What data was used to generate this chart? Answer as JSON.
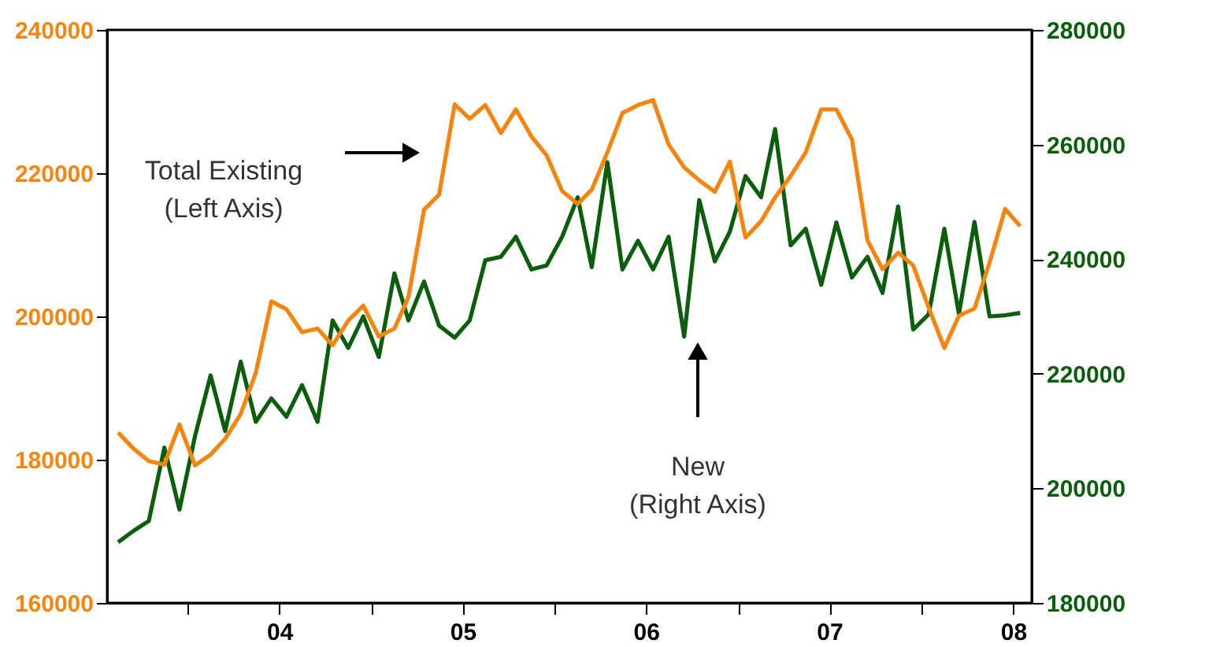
{
  "chart_data": {
    "type": "line",
    "x": [
      "2003-08-15",
      "2003-09-15",
      "2003-10-15",
      "2003-11-15",
      "2003-12-15",
      "2004-01-15",
      "2004-02-15",
      "2004-03-15",
      "2004-04-15",
      "2004-05-15",
      "2004-06-15",
      "2004-07-15",
      "2004-08-15",
      "2004-09-15",
      "2004-10-15",
      "2004-11-15",
      "2004-12-15",
      "2005-01-15",
      "2005-02-15",
      "2005-03-15",
      "2005-04-15",
      "2005-05-15",
      "2005-06-15",
      "2005-07-15",
      "2005-08-15",
      "2005-09-15",
      "2005-10-15",
      "2005-11-15",
      "2005-12-15",
      "2006-01-15",
      "2006-02-15",
      "2006-03-15",
      "2006-04-15",
      "2006-05-15",
      "2006-06-15",
      "2006-07-15",
      "2006-08-15",
      "2006-09-15",
      "2006-10-15",
      "2006-11-15",
      "2006-12-15",
      "2007-01-15",
      "2007-02-15",
      "2007-03-15",
      "2007-04-15",
      "2007-05-15",
      "2007-06-15",
      "2007-07-15",
      "2007-08-15",
      "2007-09-15",
      "2007-10-15",
      "2007-11-15",
      "2007-12-15",
      "2008-01-15",
      "2008-02-15",
      "2008-03-15",
      "2008-04-15",
      "2008-05-15",
      "2008-06-15",
      "2008-07-15"
    ],
    "series": [
      {
        "color": "#0b5e0b",
        "axis": "y2",
        "values": [
          190600,
          192600,
          194300,
          207100,
          196300,
          209100,
          219700,
          210000,
          222100,
          211600,
          215700,
          212500,
          218000,
          211600,
          229300,
          224500,
          230000,
          222900,
          237500,
          229300,
          236100,
          228400,
          226300,
          229300,
          239800,
          240400,
          243900,
          238200,
          238900,
          243900,
          250800,
          238600,
          256900,
          238200,
          243200,
          238200,
          243900,
          226500,
          250300,
          239600,
          244800,
          254500,
          250800,
          262700,
          242400,
          245300,
          235500,
          246400,
          236800,
          240400,
          234100,
          249200,
          227700,
          230400,
          245300,
          230400,
          246500,
          230000,
          230200,
          230600
        ]
      },
      {
        "color": "#f5850f",
        "axis": "y",
        "values": [
          183800,
          181500,
          179800,
          179300,
          184900,
          179200,
          180700,
          182900,
          186400,
          192100,
          202100,
          201000,
          197800,
          198300,
          196000,
          199400,
          201500,
          197200,
          198300,
          202700,
          214900,
          217000,
          229600,
          227600,
          229500,
          225600,
          228900,
          225100,
          222500,
          217500,
          215700,
          217700,
          222900,
          228400,
          229500,
          230200,
          224000,
          220800,
          219000,
          217400,
          221600,
          211000,
          213300,
          216600,
          219600,
          222900,
          228900,
          228900,
          224700,
          210600,
          206600,
          208900,
          207100,
          201200,
          195600,
          200100,
          201100,
          207500,
          215000,
          212600
        ]
      }
    ],
    "xlim": [
      "2003-07-24",
      "2008-08-07"
    ],
    "xticks": [
      {
        "value": "2004-01-01",
        "label": null
      },
      {
        "value": "2004-07-01",
        "label": "04"
      },
      {
        "value": "2005-01-01",
        "label": null
      },
      {
        "value": "2005-07-01",
        "label": "05"
      },
      {
        "value": "2006-01-01",
        "label": null
      },
      {
        "value": "2006-07-01",
        "label": "06"
      },
      {
        "value": "2007-01-01",
        "label": null
      },
      {
        "value": "2007-07-01",
        "label": "07"
      },
      {
        "value": "2008-01-01",
        "label": null
      },
      {
        "value": "2008-07-01",
        "label": "08"
      }
    ],
    "ylim": [
      160000,
      240000
    ],
    "yticks": [
      160000,
      180000,
      200000,
      220000,
      240000
    ],
    "y2lim": [
      180000,
      280000
    ],
    "y2ticks": [
      180000,
      200000,
      220000,
      240000,
      260000,
      280000
    ],
    "annotations": [
      "Total Existing\n(Left Axis)",
      "New\n(Right Axis)"
    ],
    "grid": false,
    "marker": "none",
    "line_style": "solid"
  }
}
